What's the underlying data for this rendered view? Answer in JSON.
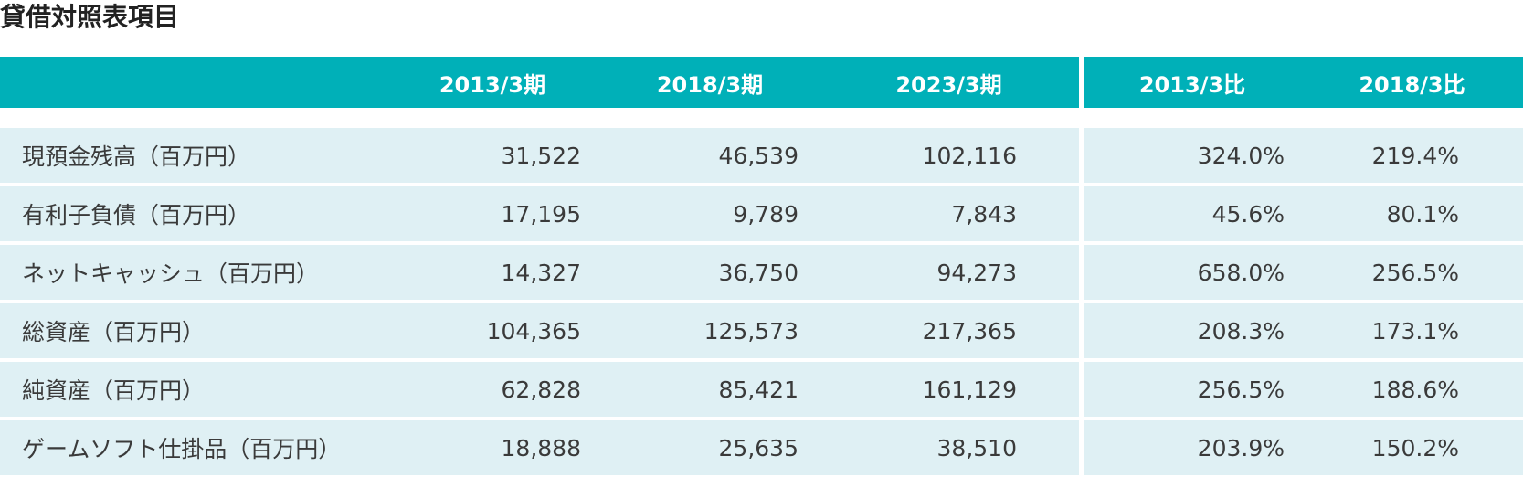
{
  "title": "貸借対照表項目",
  "table": {
    "headers": [
      "",
      "2013/3期",
      "2018/3期",
      "2023/3期",
      "2013/3比",
      "2018/3比"
    ],
    "rows": [
      {
        "label": "現預金残高（百万円）",
        "v2013": "31,522",
        "v2018": "46,539",
        "v2023": "102,116",
        "r2013": "324.0%",
        "r2018": "219.4%"
      },
      {
        "label": "有利子負債（百万円）",
        "v2013": "17,195",
        "v2018": "9,789",
        "v2023": "7,843",
        "r2013": "45.6%",
        "r2018": "80.1%"
      },
      {
        "label": "ネットキャッシュ（百万円）",
        "v2013": "14,327",
        "v2018": "36,750",
        "v2023": "94,273",
        "r2013": "658.0%",
        "r2018": "256.5%"
      },
      {
        "label": "総資産（百万円）",
        "v2013": "104,365",
        "v2018": "125,573",
        "v2023": "217,365",
        "r2013": "208.3%",
        "r2018": "173.1%"
      },
      {
        "label": "純資産（百万円）",
        "v2013": "62,828",
        "v2018": "85,421",
        "v2023": "161,129",
        "r2013": "256.5%",
        "r2018": "188.6%"
      },
      {
        "label": "ゲームソフト仕掛品（百万円）",
        "v2013": "18,888",
        "v2018": "25,635",
        "v2023": "38,510",
        "r2013": "203.9%",
        "r2018": "150.2%"
      }
    ]
  }
}
